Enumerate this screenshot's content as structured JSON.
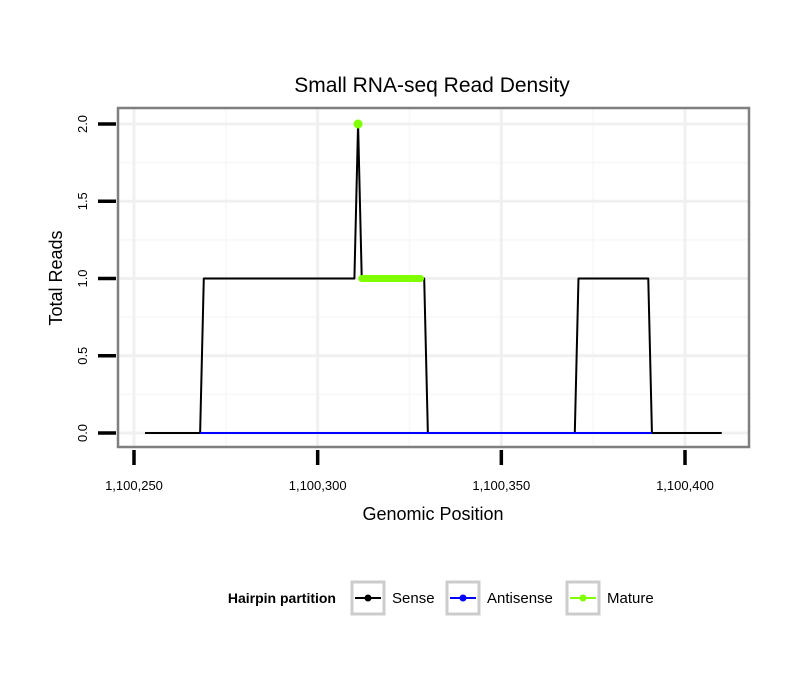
{
  "chart_data": {
    "type": "line",
    "title": "Small RNA-seq Read Density",
    "xlabel": "Genomic Position",
    "ylabel": "Total Reads",
    "xlim": [
      1100250,
      1100410
    ],
    "ylim": [
      0,
      2.0
    ],
    "x_ticks": [
      1100250,
      1100300,
      1100350,
      1100400
    ],
    "x_tick_labels": [
      "1,100,250",
      "1,100,300",
      "1,100,350",
      "1,100,400"
    ],
    "y_ticks": [
      0,
      0.5,
      1.0,
      1.5,
      2.0
    ],
    "y_tick_labels": [
      "0.0",
      "0.5",
      "1.0",
      "1.5",
      "2.0"
    ],
    "grid": true,
    "legend_placement": "bottom",
    "legend_title": "Hairpin partition",
    "series": [
      {
        "name": "Sense",
        "color": "#000000",
        "x": [
          1100253,
          1100268,
          1100269,
          1100310,
          1100311,
          1100312,
          1100329,
          1100330,
          1100370,
          1100371,
          1100390,
          1100391,
          1100410
        ],
        "y": [
          0,
          0,
          1,
          1,
          2,
          1,
          1,
          0,
          0,
          1,
          1,
          0,
          0
        ]
      },
      {
        "name": "Antisense",
        "color": "#0000ff",
        "x": [
          1100268,
          1100330,
          1100370,
          1100391
        ],
        "y": [
          0,
          0,
          0,
          0
        ]
      },
      {
        "name": "Mature",
        "color": "#7fff00",
        "x": [
          1100311,
          1100312,
          1100313,
          1100314,
          1100315,
          1100316,
          1100317,
          1100318,
          1100319,
          1100320,
          1100321,
          1100322,
          1100323,
          1100324,
          1100325,
          1100326,
          1100327,
          1100328
        ],
        "y": [
          2,
          1,
          1,
          1,
          1,
          1,
          1,
          1,
          1,
          1,
          1,
          1,
          1,
          1,
          1,
          1,
          1,
          1
        ]
      }
    ]
  }
}
